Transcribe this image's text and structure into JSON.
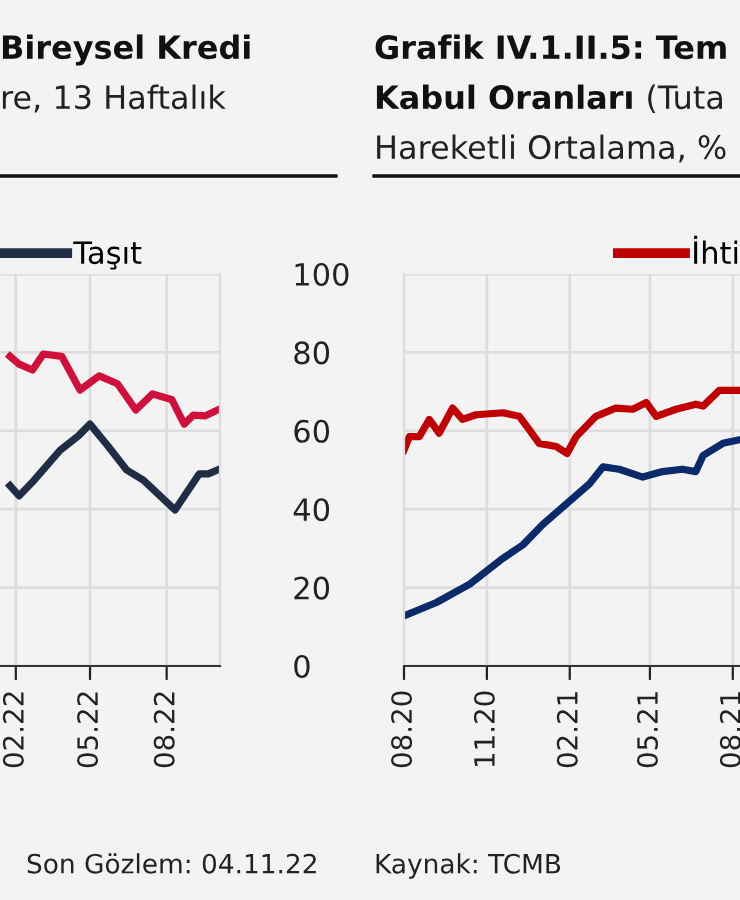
{
  "chart_data": [
    {
      "type": "line",
      "title": "Bireysel Kredi",
      "subtitle": "re, 13 Haftalık",
      "annotations": [
        "Son Gözlem: 04.11.22"
      ],
      "series": [
        {
          "color": "#d0103a",
          "x": [
            "2022-01-25",
            "2022-02-05",
            "2022-02-21",
            "2022-03-06",
            "2022-03-28",
            "2022-04-19",
            "2022-05-12",
            "2022-06-03",
            "2022-06-25",
            "2022-07-15",
            "2022-08-07",
            "2022-08-22",
            "2022-09-02",
            "2022-09-16",
            "2022-10-01"
          ],
          "values": [
            79,
            77,
            75.5,
            79.6,
            79,
            70.4,
            74,
            72,
            65.3,
            69.4,
            68,
            61.7,
            64,
            63.8,
            65.3
          ]
        },
        {
          "name": "Taşıt",
          "color": "#1f2d45",
          "x": [
            "2022-01-25",
            "2022-02-05",
            "2022-02-23",
            "2022-03-26",
            "2022-04-17",
            "2022-05-01",
            "2022-05-23",
            "2022-06-14",
            "2022-07-04",
            "2022-08-11",
            "2022-09-09",
            "2022-09-20",
            "2022-10-01"
          ],
          "values": [
            46,
            43.4,
            47.4,
            55,
            58.7,
            61.7,
            56,
            50,
            47.4,
            39.8,
            49,
            49,
            50
          ]
        }
      ],
      "xlim": [
        "2022-01-13",
        "2022-10-04"
      ],
      "xticks": [
        {
          "value": "2022-02-01",
          "label": "02.22"
        },
        {
          "value": "2022-05-01",
          "label": "05.22"
        },
        {
          "value": "2022-08-01",
          "label": "08.22"
        }
      ],
      "ylim": [
        0,
        100
      ],
      "yticks": [
        0,
        20,
        40,
        60,
        80,
        100
      ],
      "grid": true,
      "legend": "top left"
    },
    {
      "type": "line",
      "title": "Grafik IV.1.II.5: Tem\nKabul Oranları",
      "subtitle": " (Tuta\nHareketli Ortalama, %",
      "annotations": [
        "Kaynak: TCMB"
      ],
      "series": [
        {
          "name": "İhti",
          "color": "#c00000",
          "x": [
            "2020-08-01",
            "2020-08-07",
            "2020-08-18",
            "2020-08-29",
            "2020-09-09",
            "2020-09-24",
            "2020-10-05",
            "2020-10-20",
            "2020-11-19",
            "2020-12-07",
            "2020-12-18",
            "2020-12-29",
            "2021-01-17",
            "2021-01-29",
            "2021-02-08",
            "2021-03-02",
            "2021-03-24",
            "2021-04-12",
            "2021-04-27",
            "2021-05-08",
            "2021-05-30",
            "2021-06-21",
            "2021-06-29",
            "2021-07-17",
            "2021-08-08"
          ],
          "values": [
            55.1,
            58.5,
            58.5,
            62.9,
            59.4,
            65.8,
            62.9,
            64.1,
            64.6,
            63.7,
            60.3,
            56.8,
            56,
            54.2,
            58.5,
            63.7,
            65.8,
            65.5,
            67.2,
            63.7,
            65.5,
            66.8,
            66.3,
            70.3,
            70.3
          ]
        },
        {
          "color": "#0b2a6b",
          "x": [
            "2020-08-01",
            "2020-09-06",
            "2020-10-13",
            "2020-11-19",
            "2020-12-11",
            "2021-01-02",
            "2021-02-01",
            "2021-02-23",
            "2021-03-10",
            "2021-03-28",
            "2021-04-23",
            "2021-05-15",
            "2021-06-06",
            "2021-06-21",
            "2021-06-29",
            "2021-07-21",
            "2021-08-08"
          ],
          "values": [
            12.8,
            16.2,
            20.9,
            27.5,
            30.9,
            36.1,
            42.1,
            46.5,
            50.8,
            50.2,
            48.2,
            49.6,
            50.2,
            49.6,
            53.7,
            56.8,
            57.7
          ]
        }
      ],
      "xlim": [
        "2020-08-01",
        "2021-08-09"
      ],
      "xticks": [
        {
          "value": "2020-08-01",
          "label": "08.20"
        },
        {
          "value": "2020-11-01",
          "label": "11.20"
        },
        {
          "value": "2021-02-01",
          "label": "02.21"
        },
        {
          "value": "2021-05-01",
          "label": "05.21"
        },
        {
          "value": "2021-08-01",
          "label": "08.21"
        }
      ],
      "ylim": [
        0,
        100
      ],
      "yticks": [
        0,
        20,
        40,
        60,
        80,
        100
      ],
      "grid": true,
      "legend": "top right",
      "tick_labels": "x"
    }
  ]
}
